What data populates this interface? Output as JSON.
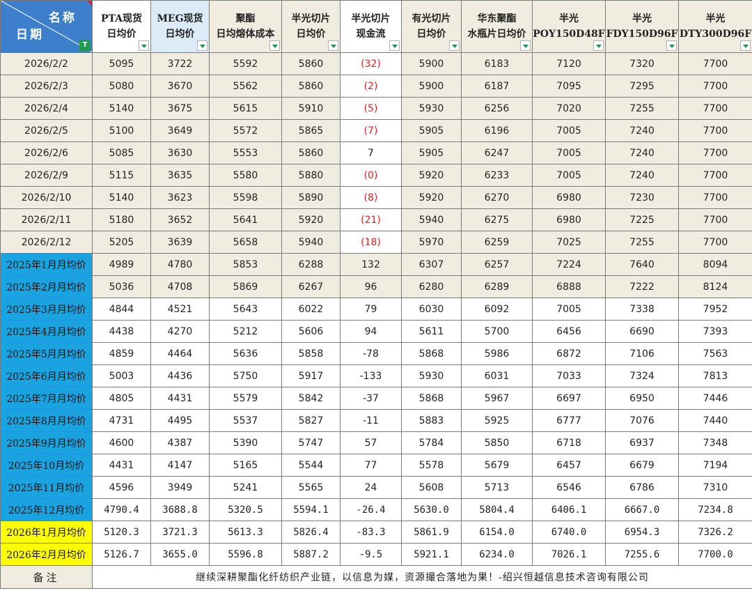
{
  "header": {
    "corner_top": "名称",
    "corner_bottom": "日期",
    "columns": [
      {
        "line1": "PTA现货",
        "line2": "日均价"
      },
      {
        "line1": "MEG现货",
        "line2": "日均价"
      },
      {
        "line1": "聚酯",
        "line2": "日均熔体成本"
      },
      {
        "line1": "半光切片",
        "line2": "日均价"
      },
      {
        "line1": "半光切片",
        "line2": "现金流"
      },
      {
        "line1": "有光切片",
        "line2": "日均价"
      },
      {
        "line1": "华东聚酯",
        "line2": "水瓶片日均价"
      },
      {
        "line1": "半光",
        "line2": "POY150D48F"
      },
      {
        "line1": "半光",
        "line2": "FDY150D96F"
      },
      {
        "line1": "半光",
        "line2": "DTY300D96F"
      }
    ]
  },
  "daily_rows": [
    {
      "date": "2026/2/2",
      "values": [
        "5095",
        "3722",
        "5592",
        "5860",
        "(32)",
        "5900",
        "6183",
        "7120",
        "7320",
        "7700"
      ]
    },
    {
      "date": "2026/2/3",
      "values": [
        "5080",
        "3670",
        "5562",
        "5860",
        "(2)",
        "5900",
        "6187",
        "7095",
        "7295",
        "7700"
      ]
    },
    {
      "date": "2026/2/4",
      "values": [
        "5140",
        "3675",
        "5615",
        "5910",
        "(5)",
        "5930",
        "6256",
        "7020",
        "7255",
        "7700"
      ]
    },
    {
      "date": "2026/2/5",
      "values": [
        "5100",
        "3649",
        "5572",
        "5865",
        "(7)",
        "5905",
        "6196",
        "7005",
        "7240",
        "7700"
      ]
    },
    {
      "date": "2026/2/6",
      "values": [
        "5085",
        "3630",
        "5553",
        "5860",
        "7",
        "5905",
        "6247",
        "7005",
        "7240",
        "7700"
      ]
    },
    {
      "date": "2026/2/9",
      "values": [
        "5115",
        "3635",
        "5580",
        "5880",
        "(0)",
        "5920",
        "6233",
        "7005",
        "7240",
        "7700"
      ]
    },
    {
      "date": "2026/2/10",
      "values": [
        "5140",
        "3623",
        "5598",
        "5890",
        "(8)",
        "5920",
        "6270",
        "6980",
        "7230",
        "7700"
      ]
    },
    {
      "date": "2026/2/11",
      "values": [
        "5180",
        "3652",
        "5641",
        "5920",
        "(21)",
        "5940",
        "6275",
        "6980",
        "7225",
        "7700"
      ]
    },
    {
      "date": "2026/2/12",
      "values": [
        "5205",
        "3639",
        "5658",
        "5940",
        "(18)",
        "5970",
        "6259",
        "7025",
        "7255",
        "7700"
      ]
    }
  ],
  "monthly_rows": [
    {
      "label": "2025年1月月均价",
      "values": [
        "4989",
        "4780",
        "5853",
        "6288",
        "132",
        "6307",
        "6257",
        "7224",
        "7640",
        "8094"
      ]
    },
    {
      "label": "2025年2月月均价",
      "values": [
        "5036",
        "4708",
        "5869",
        "6267",
        "96",
        "6280",
        "6289",
        "6888",
        "7222",
        "8124"
      ]
    },
    {
      "label": "2025年3月月均价",
      "values": [
        "4844",
        "4521",
        "5643",
        "6022",
        "79",
        "6030",
        "6092",
        "7005",
        "7338",
        "7952"
      ]
    },
    {
      "label": "2025年4月月均价",
      "values": [
        "4438",
        "4270",
        "5212",
        "5606",
        "94",
        "5611",
        "5700",
        "6456",
        "6690",
        "7393"
      ]
    },
    {
      "label": "2025年5月月均价",
      "values": [
        "4859",
        "4464",
        "5636",
        "5858",
        "-78",
        "5868",
        "5986",
        "6872",
        "7106",
        "7563"
      ]
    },
    {
      "label": "2025年6月月均价",
      "values": [
        "5003",
        "4436",
        "5750",
        "5917",
        "-133",
        "5930",
        "6031",
        "7033",
        "7324",
        "7813"
      ]
    },
    {
      "label": "2025年7月月均价",
      "values": [
        "4805",
        "4431",
        "5579",
        "5842",
        "-37",
        "5868",
        "5967",
        "6697",
        "6950",
        "7446"
      ]
    },
    {
      "label": "2025年8月月均价",
      "values": [
        "4731",
        "4495",
        "5537",
        "5827",
        "-11",
        "5883",
        "5925",
        "6777",
        "7076",
        "7440"
      ]
    },
    {
      "label": "2025年9月月均价",
      "values": [
        "4600",
        "4387",
        "5390",
        "5747",
        "57",
        "5784",
        "5850",
        "6718",
        "6937",
        "7348"
      ]
    },
    {
      "label": "2025年10月均价",
      "values": [
        "4431",
        "4147",
        "5165",
        "5544",
        "77",
        "5578",
        "5679",
        "6457",
        "6679",
        "7194"
      ]
    },
    {
      "label": "2025年11月均价",
      "values": [
        "4596",
        "3949",
        "5241",
        "5565",
        "24",
        "5608",
        "5713",
        "6546",
        "6786",
        "7310"
      ]
    },
    {
      "label": "2025年12月均价",
      "values": [
        "4790.4",
        "3688.8",
        "5320.5",
        "5594.1",
        "-26.4",
        "5630.0",
        "5804.4",
        "6406.1",
        "6667.0",
        "7234.8"
      ]
    },
    {
      "label": "2026年1月月均价",
      "values": [
        "5120.3",
        "3721.3",
        "5613.3",
        "5826.4",
        "-83.3",
        "5861.9",
        "6154.0",
        "6740.0",
        "6954.3",
        "7326.2"
      ]
    },
    {
      "label": "2026年2月月均价",
      "values": [
        "5126.7",
        "3655.0",
        "5596.8",
        "5887.2",
        "-9.5",
        "5921.1",
        "6234.0",
        "7026.1",
        "7255.6",
        "7700.0"
      ]
    }
  ],
  "footer": {
    "label": "备注",
    "text": "继续深耕聚酯化纤纺织产业链，以信息为媒，资源撮合落地为果！-绍兴恒越信息技术咨询有限公司"
  },
  "colors": {
    "header_corner": "#3d7fcb",
    "label_blue": "#19a3e0",
    "label_yellow": "#ffff00",
    "negative_red": "#e02020",
    "tint": "#f0ece0"
  }
}
